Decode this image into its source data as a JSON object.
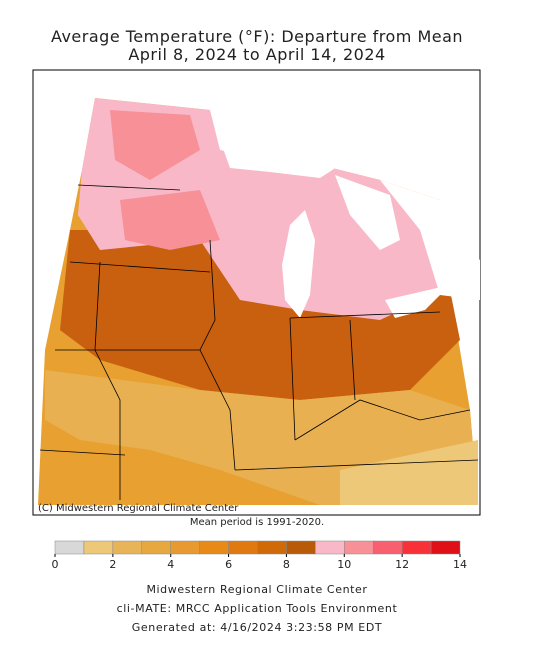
{
  "header": {
    "title_line1": "Average Temperature (°F): Departure from Mean",
    "title_line2": "April 8, 2024 to April 14, 2024"
  },
  "map": {
    "credit": "(C) Midwestern Regional Climate Center",
    "note": "Mean period is 1991-2020."
  },
  "colorbar": {
    "bins": [
      0,
      1,
      2,
      3,
      4,
      5,
      6,
      7,
      8,
      9,
      10,
      11,
      12,
      13,
      14
    ],
    "colors": [
      "#d8d8d8",
      "#ecc878",
      "#e8b458",
      "#e8a840",
      "#e89a30",
      "#e88a18",
      "#e07a10",
      "#d06a08",
      "#b85a08",
      "#f8b8c8",
      "#f89098",
      "#f86070",
      "#f83038",
      "#e01018",
      "#c00008"
    ],
    "ticks": [
      0,
      2,
      4,
      6,
      8,
      10,
      12,
      14
    ]
  },
  "footer": {
    "line1": "Midwestern Regional Climate Center",
    "line2": "cli-MATE: MRCC Application Tools Environment",
    "line3": "Generated at: 4/16/2024 3:23:58 PM EDT"
  }
}
